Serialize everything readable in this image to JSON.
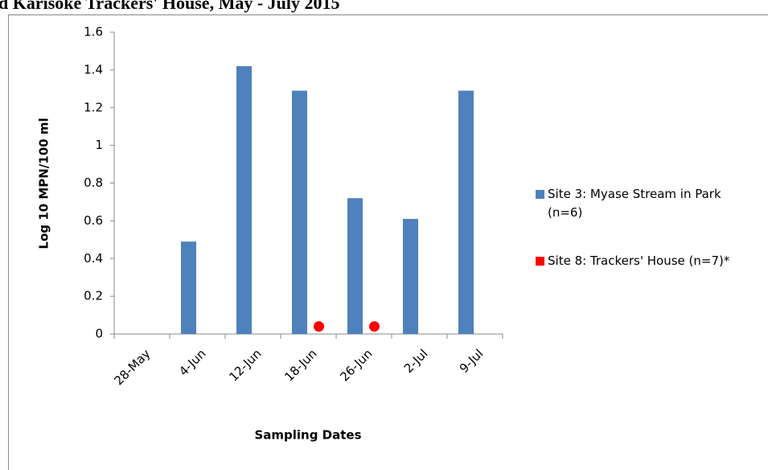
{
  "chart_data": {
    "type": "bar",
    "title": "d Karisoke Trackers' House, May - July 2015",
    "x_label": "Sampling Dates",
    "y_label": "Log 10 MPN/100 ml",
    "categories": [
      "28-May",
      "4-Jun",
      "12-Jun",
      "18-Jun",
      "26-Jun",
      "2-Jul",
      "9-Jul"
    ],
    "series": [
      {
        "name": "Site 3: Myase Stream in Park (n=6)",
        "color": "#4f81bd",
        "type": "bar",
        "values": [
          null,
          0.49,
          1.42,
          1.29,
          0.72,
          0.61,
          1.29
        ]
      },
      {
        "name": "Site 8: Trackers' House (n=7)*",
        "color": "#ff0000",
        "type": "scatter",
        "values": [
          null,
          null,
          null,
          0.04,
          0.04,
          null,
          null
        ]
      }
    ],
    "ylim": [
      0,
      1.6
    ],
    "yticks": [
      0,
      0.2,
      0.4,
      0.6,
      0.8,
      1,
      1.2,
      1.4,
      1.6
    ],
    "legend": "right"
  }
}
